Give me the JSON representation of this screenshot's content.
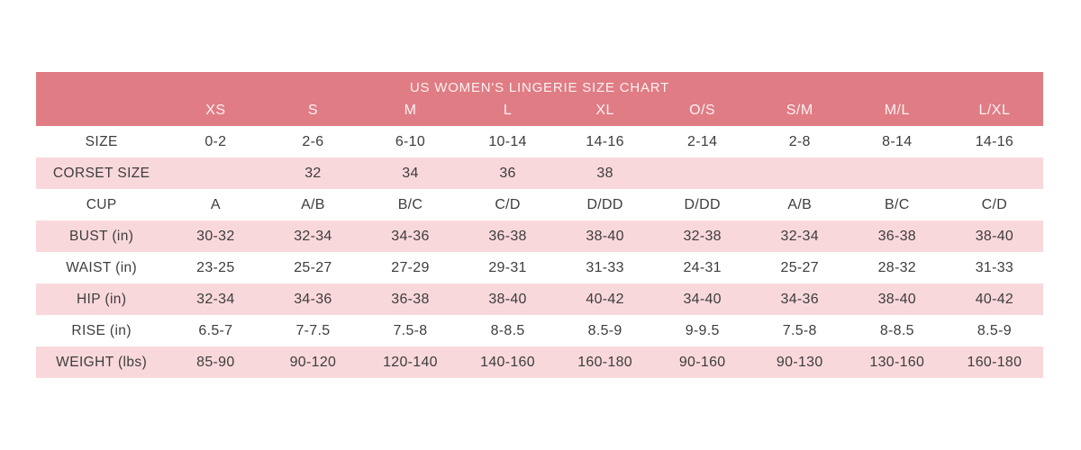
{
  "title": "US WOMEN'S LINGERIE SIZE CHART",
  "columns": [
    "",
    "XS",
    "S",
    "M",
    "L",
    "XL",
    "O/S",
    "S/M",
    "M/L",
    "L/XL"
  ],
  "rows": [
    {
      "label": "SIZE",
      "values": [
        "0-2",
        "2-6",
        "6-10",
        "10-14",
        "14-16",
        "2-14",
        "2-8",
        "8-14",
        "14-16"
      ]
    },
    {
      "label": "CORSET SIZE",
      "values": [
        "",
        "32",
        "34",
        "36",
        "38",
        "",
        "",
        "",
        ""
      ]
    },
    {
      "label": "CUP",
      "values": [
        "A",
        "A/B",
        "B/C",
        "C/D",
        "D/DD",
        "D/DD",
        "A/B",
        "B/C",
        "C/D"
      ]
    },
    {
      "label": "BUST (in)",
      "values": [
        "30-32",
        "32-34",
        "34-36",
        "36-38",
        "38-40",
        "32-38",
        "32-34",
        "36-38",
        "38-40"
      ]
    },
    {
      "label": "WAIST (in)",
      "values": [
        "23-25",
        "25-27",
        "27-29",
        "29-31",
        "31-33",
        "24-31",
        "25-27",
        "28-32",
        "31-33"
      ]
    },
    {
      "label": "HIP (in)",
      "values": [
        "32-34",
        "34-36",
        "36-38",
        "38-40",
        "40-42",
        "34-40",
        "34-36",
        "38-40",
        "40-42"
      ]
    },
    {
      "label": "RISE (in)",
      "values": [
        "6.5-7",
        "7-7.5",
        "7.5-8",
        "8-8.5",
        "8.5-9",
        "9-9.5",
        "7.5-8",
        "8-8.5",
        "8.5-9"
      ]
    },
    {
      "label": "WEIGHT (lbs)",
      "values": [
        "85-90",
        "90-120",
        "120-140",
        "140-160",
        "160-180",
        "90-160",
        "90-130",
        "130-160",
        "160-180"
      ]
    }
  ],
  "colors": {
    "header_background": "#e07c84",
    "header_text": "#fdf2f3",
    "row_pink": "#f9d8db",
    "row_white": "#ffffff",
    "body_text": "#3d3d3d"
  },
  "chart_data": {
    "type": "table",
    "title": "US WOMEN'S LINGERIE SIZE CHART",
    "column_headers": [
      "",
      "XS",
      "S",
      "M",
      "L",
      "XL",
      "O/S",
      "S/M",
      "M/L",
      "L/XL"
    ],
    "row_headers": [
      "SIZE",
      "CORSET SIZE",
      "CUP",
      "BUST (in)",
      "WAIST (in)",
      "HIP (in)",
      "RISE (in)",
      "WEIGHT (lbs)"
    ],
    "cells": [
      [
        "0-2",
        "2-6",
        "6-10",
        "10-14",
        "14-16",
        "2-14",
        "2-8",
        "8-14",
        "14-16"
      ],
      [
        "",
        "32",
        "34",
        "36",
        "38",
        "",
        "",
        "",
        ""
      ],
      [
        "A",
        "A/B",
        "B/C",
        "C/D",
        "D/DD",
        "D/DD",
        "A/B",
        "B/C",
        "C/D"
      ],
      [
        "30-32",
        "32-34",
        "34-36",
        "36-38",
        "38-40",
        "32-38",
        "32-34",
        "36-38",
        "38-40"
      ],
      [
        "23-25",
        "25-27",
        "27-29",
        "29-31",
        "31-33",
        "24-31",
        "25-27",
        "28-32",
        "31-33"
      ],
      [
        "32-34",
        "34-36",
        "36-38",
        "38-40",
        "40-42",
        "34-40",
        "34-36",
        "38-40",
        "40-42"
      ],
      [
        "6.5-7",
        "7-7.5",
        "7.5-8",
        "8-8.5",
        "8.5-9",
        "9-9.5",
        "7.5-8",
        "8-8.5",
        "8.5-9"
      ],
      [
        "85-90",
        "90-120",
        "120-140",
        "140-160",
        "160-180",
        "90-160",
        "90-130",
        "130-160",
        "160-180"
      ]
    ],
    "layout_hints": {
      "striped_rows": "white / pink alternating starting white",
      "header_band": "salmon with white text, title row + size-column row"
    }
  }
}
